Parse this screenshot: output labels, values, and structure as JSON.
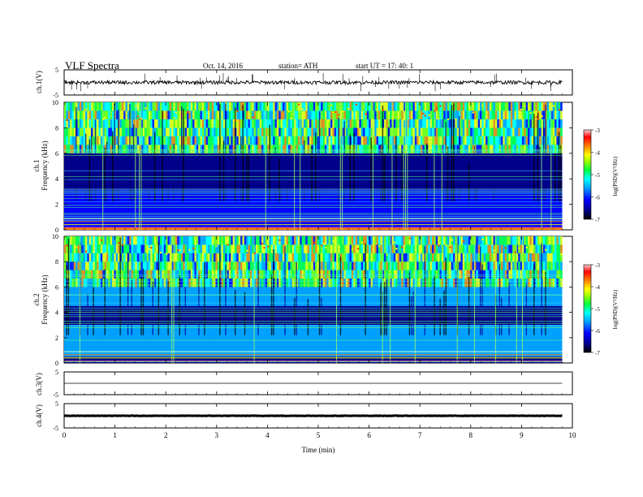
{
  "header": {
    "title": "VLF  Spectra",
    "date": "Oct. 14, 2016",
    "station": "station= ATH",
    "start": "start  UT  =    17: 40: 1"
  },
  "chart_data": [
    {
      "type": "line",
      "panel": "ch1-waveform",
      "ylabel": "ch.1(V)",
      "ylim": [
        -5,
        5
      ],
      "yticks": [
        "5",
        "-5"
      ],
      "baseline": 0,
      "note_values": "noisy trace near 0 V with spikes"
    },
    {
      "type": "heatmap",
      "panel": "ch1-spectrogram",
      "ylabel": [
        "ch.1",
        "Frequency  (kHz)"
      ],
      "ylim": [
        0,
        10
      ],
      "yticks": [
        "0",
        "2",
        "4",
        "6",
        "8",
        "10"
      ],
      "colorbar": {
        "label": "log(PSD)(V²/Hz)",
        "ticks": [
          "-3",
          "-4",
          "-5",
          "-6",
          "-7"
        ],
        "range": [
          -7,
          -3
        ]
      },
      "bands": [
        {
          "from_khz": 6.0,
          "to_khz": 10.0,
          "level": -5.6
        },
        {
          "from_khz": 3.2,
          "to_khz": 6.0,
          "level": -6.8
        },
        {
          "from_khz": 1.5,
          "to_khz": 3.2,
          "level": -6.3
        },
        {
          "from_khz": 0.2,
          "to_khz": 1.5,
          "level": -6.1
        },
        {
          "from_khz": 0.0,
          "to_khz": 0.2,
          "level": -4.0
        }
      ]
    },
    {
      "type": "heatmap",
      "panel": "ch2-spectrogram",
      "ylabel": [
        "ch.2",
        "Frequency  (kHz)"
      ],
      "ylim": [
        0,
        10
      ],
      "yticks": [
        "0",
        "2",
        "4",
        "6",
        "8",
        "10"
      ],
      "colorbar": {
        "label": "log(PSD)(V²/Hz)",
        "ticks": [
          "-3",
          "-4",
          "-5",
          "-6",
          "-7"
        ],
        "range": [
          -7,
          -3
        ]
      },
      "bands": [
        {
          "from_khz": 6.5,
          "to_khz": 10.0,
          "level": -5.5
        },
        {
          "from_khz": 4.5,
          "to_khz": 6.5,
          "level": -6.0
        },
        {
          "from_khz": 3.0,
          "to_khz": 4.5,
          "level": -6.8
        },
        {
          "from_khz": 0.5,
          "to_khz": 3.0,
          "level": -6.0
        },
        {
          "from_khz": 0.0,
          "to_khz": 0.5,
          "level": -6.4
        }
      ]
    },
    {
      "type": "line",
      "panel": "ch3-waveform",
      "ylabel": "ch.3(V)",
      "ylim": [
        -5,
        5
      ],
      "yticks": [
        "5",
        "-5"
      ],
      "baseline": 0
    },
    {
      "type": "line",
      "panel": "ch4-waveform",
      "ylabel": "ch.4(V)",
      "ylim": [
        -5,
        5
      ],
      "yticks": [
        "5",
        "-5"
      ],
      "baseline": 0
    }
  ],
  "xaxis": {
    "label": "Time  (min)",
    "ticks": [
      "0",
      "1",
      "2",
      "3",
      "4",
      "5",
      "6",
      "7",
      "8",
      "9",
      "10"
    ],
    "xlim": [
      0,
      10
    ],
    "data_end": 9.8
  },
  "colors": {
    "spec_scale": [
      "#000000",
      "#00008b",
      "#0000ff",
      "#00a0ff",
      "#00ffff",
      "#00ff40",
      "#80ff00",
      "#ffff00",
      "#ff8000",
      "#ff0000",
      "#ffc0c0"
    ]
  }
}
